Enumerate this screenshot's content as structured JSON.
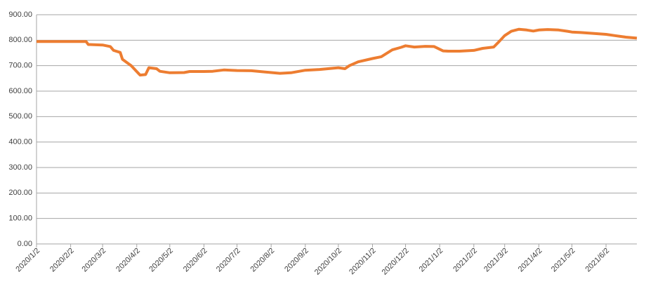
{
  "chart_data": {
    "type": "line",
    "x": [
      "2020/1/2",
      "2020/2/2",
      "2020/2/16",
      "2020/2/18",
      "2020/3/2",
      "2020/3/9",
      "2020/3/12",
      "2020/3/18",
      "2020/3/20",
      "2020/3/28",
      "2020/4/5",
      "2020/4/10",
      "2020/4/13",
      "2020/4/20",
      "2020/4/23",
      "2020/5/2",
      "2020/5/15",
      "2020/5/20",
      "2020/6/2",
      "2020/6/10",
      "2020/6/20",
      "2020/7/2",
      "2020/7/15",
      "2020/8/2",
      "2020/8/10",
      "2020/8/20",
      "2020/9/2",
      "2020/9/15",
      "2020/10/2",
      "2020/10/8",
      "2020/10/12",
      "2020/10/20",
      "2020/11/2",
      "2020/11/10",
      "2020/11/20",
      "2020/11/28",
      "2020/12/2",
      "2020/12/10",
      "2020/12/20",
      "2020/12/28",
      "2021/1/5",
      "2021/1/10",
      "2021/1/20",
      "2021/2/2",
      "2021/2/10",
      "2021/2/20",
      "2021/2/25",
      "2021/3/2",
      "2021/3/8",
      "2021/3/15",
      "2021/3/22",
      "2021/3/28",
      "2021/4/2",
      "2021/4/10",
      "2021/4/20",
      "2021/4/28",
      "2021/5/2",
      "2021/5/10",
      "2021/5/20",
      "2021/6/2",
      "2021/6/10",
      "2021/6/20",
      "2021/6/30"
    ],
    "series": [
      {
        "color": "#ed7d31",
        "values": [
          795,
          795,
          795,
          783,
          781,
          775,
          760,
          752,
          725,
          700,
          663,
          665,
          692,
          688,
          678,
          672,
          673,
          677,
          677,
          678,
          683,
          681,
          680,
          673,
          670,
          672,
          682,
          685,
          692,
          688,
          700,
          715,
          728,
          735,
          762,
          772,
          778,
          773,
          776,
          775,
          758,
          757,
          757,
          760,
          768,
          773,
          795,
          818,
          835,
          843,
          840,
          836,
          840,
          842,
          840,
          835,
          832,
          830,
          827,
          823,
          818,
          812,
          808
        ]
      }
    ],
    "xlim": [
      "2020/1/2",
      "2021/6/30"
    ],
    "xticks": [
      "2020/1/2",
      "2020/2/2",
      "2020/3/2",
      "2020/4/2",
      "2020/5/2",
      "2020/6/2",
      "2020/7/2",
      "2020/8/2",
      "2020/9/2",
      "2020/10/2",
      "2020/11/2",
      "2020/12/2",
      "2021/1/2",
      "2021/2/2",
      "2021/3/2",
      "2021/4/2",
      "2021/5/2",
      "2021/6/2"
    ],
    "ylim": [
      0,
      900
    ],
    "yticks": [
      {
        "value": 0,
        "label": "0.00"
      },
      {
        "value": 100,
        "label": "100.00"
      },
      {
        "value": 200,
        "label": "200.00"
      },
      {
        "value": 300,
        "label": "300.00"
      },
      {
        "value": 400,
        "label": "400.00"
      },
      {
        "value": 500,
        "label": "500.00"
      },
      {
        "value": 600,
        "label": "600.00"
      },
      {
        "value": 700,
        "label": "700.00"
      },
      {
        "value": 800,
        "label": "800.00"
      },
      {
        "value": 900,
        "label": "900.00"
      }
    ],
    "grid": true
  }
}
